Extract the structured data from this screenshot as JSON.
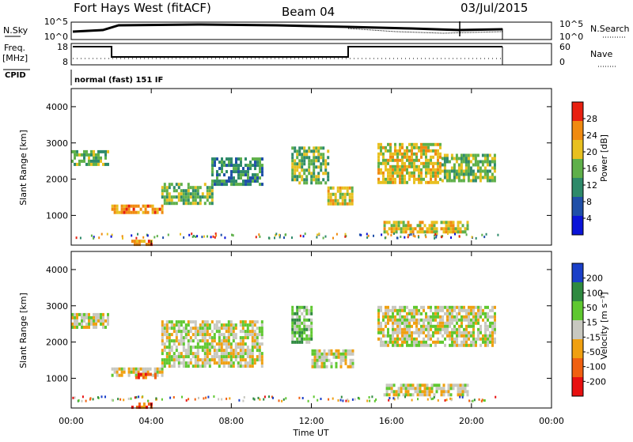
{
  "header": {
    "station": "Fort Hays West (fitACF)",
    "beam": "Beam 04",
    "date": "03/Jul/2015"
  },
  "noise_panel": {
    "left_label": "N.Sky",
    "right_label": "N.Search",
    "left_ticks": [
      "10^5",
      "10^0"
    ],
    "right_ticks": [
      "10^5",
      "10^0"
    ]
  },
  "freq_panel": {
    "left_label_1": "Freq.",
    "left_label_2": "[MHz]",
    "right_label": "Nave",
    "left_ticks": [
      "18",
      "8"
    ],
    "right_ticks": [
      "60",
      "0"
    ]
  },
  "cpid": {
    "label": "CPID",
    "text": "normal (fast) 151 IF"
  },
  "power_panel": {
    "ylabel": "Slant Range [km]",
    "yticks": [
      "4000",
      "3000",
      "2000",
      "1000"
    ],
    "colorbar_label": "Power [dB]",
    "colorbar_ticks": [
      "28",
      "24",
      "20",
      "16",
      "12",
      "8",
      "4"
    ]
  },
  "velocity_panel": {
    "ylabel": "Slant Range [km]",
    "yticks": [
      "4000",
      "3000",
      "2000",
      "1000"
    ],
    "colorbar_label": "Velocity [m s⁻¹]",
    "colorbar_ticks": [
      "200",
      "100",
      "50",
      "15",
      "-15",
      "-50",
      "-100",
      "-200"
    ]
  },
  "time_axis": {
    "label": "Time UT",
    "ticks": [
      "00:00",
      "04:00",
      "08:00",
      "12:00",
      "16:00",
      "20:00",
      "00:00"
    ]
  },
  "colors": {
    "power": [
      "#0a14d8",
      "#1f4fa8",
      "#2e8a6a",
      "#5fb04a",
      "#e8c020",
      "#f08a10",
      "#e82010"
    ],
    "velocity": [
      "#e81010",
      "#f06010",
      "#f0a010",
      "#c8c8c0",
      "#5fc830",
      "#2f8a40",
      "#1a3fc8"
    ]
  },
  "chart_data": [
    {
      "type": "heatmap",
      "name": "power",
      "x_range_hours": [
        0,
        24
      ],
      "y_range_km": [
        180,
        4500
      ],
      "regions": [
        {
          "t0": 0.0,
          "t1": 1.8,
          "r0": 2400,
          "r1": 2800,
          "level": 3
        },
        {
          "t0": 2.0,
          "t1": 4.5,
          "r0": 1050,
          "r1": 1300,
          "level": 5
        },
        {
          "t0": 4.5,
          "t1": 7.0,
          "r0": 1350,
          "r1": 1900,
          "level": 3
        },
        {
          "t0": 7.0,
          "t1": 9.5,
          "r0": 1900,
          "r1": 2600,
          "level": 2
        },
        {
          "t0": 11.0,
          "t1": 12.8,
          "r0": 1900,
          "r1": 2900,
          "level": 3
        },
        {
          "t0": 12.8,
          "t1": 14.1,
          "r0": 1300,
          "r1": 1800,
          "level": 4
        },
        {
          "t0": 15.3,
          "t1": 18.5,
          "r0": 1900,
          "r1": 3000,
          "level": 4
        },
        {
          "t0": 18.5,
          "t1": 21.2,
          "r0": 2000,
          "r1": 2700,
          "level": 3
        },
        {
          "t0": 15.6,
          "t1": 19.8,
          "r0": 550,
          "r1": 850,
          "level": 4
        },
        {
          "t0": 3.0,
          "t1": 4.0,
          "r0": 200,
          "r1": 330,
          "level": 5
        }
      ]
    },
    {
      "type": "heatmap",
      "name": "velocity",
      "x_range_hours": [
        0,
        24
      ],
      "y_range_km": [
        180,
        4500
      ],
      "regions": [
        {
          "t0": 0.0,
          "t1": 1.8,
          "r0": 2400,
          "r1": 2800,
          "level": 3
        },
        {
          "t0": 2.0,
          "t1": 4.5,
          "r0": 1050,
          "r1": 1300,
          "level": 3
        },
        {
          "t0": 3.2,
          "t1": 4.2,
          "r0": 1000,
          "r1": 1150,
          "level": 1
        },
        {
          "t0": 4.5,
          "t1": 9.5,
          "r0": 1350,
          "r1": 2600,
          "level": 3
        },
        {
          "t0": 11.0,
          "t1": 12.0,
          "r0": 2000,
          "r1": 3000,
          "level": 4
        },
        {
          "t0": 12.0,
          "t1": 14.1,
          "r0": 1300,
          "r1": 1800,
          "level": 3
        },
        {
          "t0": 15.3,
          "t1": 21.2,
          "r0": 1900,
          "r1": 3000,
          "level": 3
        },
        {
          "t0": 15.6,
          "t1": 19.8,
          "r0": 550,
          "r1": 850,
          "level": 3
        },
        {
          "t0": 3.0,
          "t1": 4.0,
          "r0": 200,
          "r1": 330,
          "level": 1
        }
      ]
    }
  ]
}
